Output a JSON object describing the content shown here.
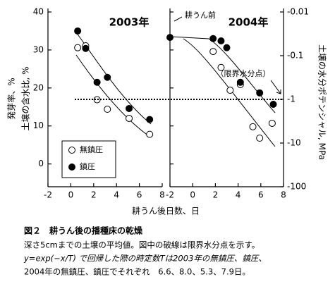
{
  "chart_data": [
    {
      "type": "scatter",
      "title": "2003年",
      "ylabel": [
        "発芽率、%",
        "土壌の含水比, %"
      ],
      "xlabel": "耕うん後日数、日",
      "xlim": [
        -2,
        8
      ],
      "xticks": [
        -2,
        0,
        2,
        4,
        6,
        8
      ],
      "ylim": [
        -6,
        40
      ],
      "yticks": [
        0,
        10,
        20,
        30,
        40
      ],
      "legend": "lower-left",
      "series": [
        {
          "name": "無鎮圧",
          "color": "#000000",
          "marker": "open",
          "x": [
            0.6,
            1.3,
            2.3,
            3.2,
            5.1,
            6.9
          ],
          "values": [
            30.6,
            31.1,
            16.9,
            14.4,
            12.0,
            7.8
          ]
        },
        {
          "name": "鎮圧",
          "color": "#000000",
          "marker": "filled",
          "x": [
            0.6,
            1.3,
            2.3,
            3.2,
            5.1,
            6.9
          ],
          "values": [
            35.0,
            30.4,
            21.5,
            22.8,
            14.6,
            11.7
          ]
        }
      ]
    },
    {
      "type": "scatter",
      "title": "2004年",
      "y2label": "土壌の水分ポテンシャル, MPa",
      "xlim": [
        -2,
        8
      ],
      "xticks": [
        -2,
        0,
        2,
        4,
        6,
        8
      ],
      "ylim": [
        -6,
        40
      ],
      "yticks": [
        0,
        10,
        20,
        30,
        40
      ],
      "y2lim": [
        -0.01,
        -100
      ],
      "y2ticks": [
        -0.01,
        -0.1,
        -1,
        -10,
        -100
      ],
      "y2log": true,
      "hline": -1,
      "annotations": [
        "耕うん前",
        "（限界水分点）"
      ],
      "series": [
        {
          "color": "#000000",
          "marker": "open",
          "x": [
            1.8,
            2.5,
            3.3,
            4.2,
            5.3,
            5.9,
            7.0
          ],
          "values": [
            29.6,
            25.4,
            19.4,
            20.9,
            9.8,
            6.8,
            10.7
          ]
        },
        {
          "color": "#000000",
          "marker": "filled",
          "x": [
            -2,
            1.8,
            2.5,
            3.0,
            4.2,
            5.9,
            7.1
          ],
          "values": [
            33.3,
            33.0,
            32.4,
            30.6,
            21.5,
            18.7,
            15.7
          ]
        }
      ]
    }
  ],
  "caption": {
    "title": "図２　耕うん後の播種床の乾燥",
    "lines": [
      "深さ5cmまでの土壌の平均値。図中の破線は限界水分点を示す。",
      "y=exp(−x/T) で回帰した際の時定数Tは2003年の無鎮圧、鎮圧、",
      "2004年の無鎮圧、鎮圧でそれぞれ　6.6、8.0、5.3、7.9日。"
    ]
  }
}
